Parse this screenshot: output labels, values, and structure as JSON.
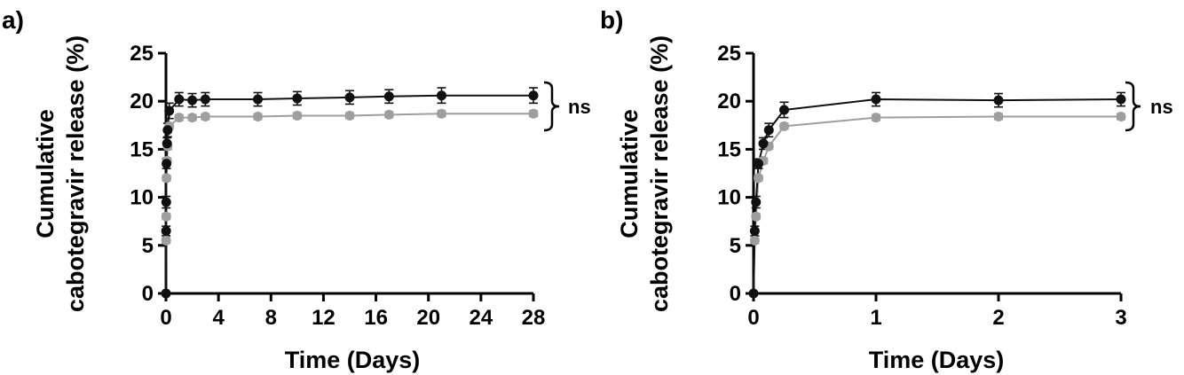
{
  "chart_data": [
    {
      "type": "line",
      "panel_label": "a)",
      "xlabel": "Time (Days)",
      "ylabel_lines": [
        "Cumulative",
        "cabotegravir release (%)"
      ],
      "xlim": [
        0,
        28
      ],
      "ylim": [
        0,
        25
      ],
      "xticks": [
        0,
        4,
        8,
        12,
        16,
        20,
        24,
        28
      ],
      "yticks": [
        0,
        5,
        10,
        15,
        20,
        25
      ],
      "significance_label": "ns",
      "series": [
        {
          "color": "#111111",
          "marker": "circle",
          "x": [
            0,
            0.01,
            0.02,
            0.04,
            0.08,
            0.125,
            0.25,
            1,
            2,
            3,
            7,
            10,
            14,
            17,
            21,
            28
          ],
          "y": [
            0,
            6.5,
            9.5,
            13.5,
            15.6,
            17.0,
            19.0,
            20.2,
            20.1,
            20.2,
            20.2,
            20.3,
            20.4,
            20.5,
            20.6,
            20.6
          ],
          "error": [
            0,
            0.5,
            0.6,
            0.5,
            0.6,
            0.7,
            0.8,
            0.7,
            0.7,
            0.7,
            0.7,
            0.7,
            0.7,
            0.7,
            0.8,
            0.8
          ]
        },
        {
          "color": "#9e9e9e",
          "marker": "circle",
          "x": [
            0,
            0.01,
            0.02,
            0.04,
            0.08,
            0.125,
            0.25,
            1,
            2,
            3,
            7,
            10,
            14,
            17,
            21,
            28
          ],
          "y": [
            0,
            5.5,
            8.0,
            12.0,
            13.8,
            15.3,
            17.4,
            18.3,
            18.3,
            18.4,
            18.4,
            18.5,
            18.5,
            18.6,
            18.7,
            18.7
          ],
          "error": [
            0,
            0.3,
            0.3,
            0.3,
            0.3,
            0.3,
            0.3,
            0.3,
            0.3,
            0.3,
            0.3,
            0.3,
            0.3,
            0.3,
            0.3,
            0.3
          ]
        }
      ]
    },
    {
      "type": "line",
      "panel_label": "b)",
      "xlabel": "Time (Days)",
      "ylabel_lines": [
        "Cumulative",
        "cabotegravir release (%)"
      ],
      "xlim": [
        0,
        3
      ],
      "ylim": [
        0,
        25
      ],
      "xticks": [
        0,
        1,
        2,
        3
      ],
      "yticks": [
        0,
        5,
        10,
        15,
        20,
        25
      ],
      "significance_label": "ns",
      "series": [
        {
          "color": "#111111",
          "marker": "circle",
          "x": [
            0,
            0.01,
            0.02,
            0.04,
            0.08,
            0.125,
            0.25,
            1,
            2,
            3
          ],
          "y": [
            0,
            6.5,
            9.5,
            13.5,
            15.6,
            17.0,
            19.1,
            20.2,
            20.1,
            20.2
          ],
          "error": [
            0,
            0.5,
            0.6,
            0.5,
            0.6,
            0.7,
            0.8,
            0.7,
            0.7,
            0.7
          ]
        },
        {
          "color": "#9e9e9e",
          "marker": "circle",
          "x": [
            0,
            0.01,
            0.02,
            0.04,
            0.08,
            0.125,
            0.25,
            1,
            2,
            3
          ],
          "y": [
            0,
            5.5,
            8.0,
            12.0,
            13.8,
            15.3,
            17.4,
            18.3,
            18.4,
            18.4
          ],
          "error": [
            0,
            0.3,
            0.3,
            0.3,
            0.3,
            0.3,
            0.3,
            0.3,
            0.3,
            0.3
          ]
        }
      ]
    }
  ]
}
